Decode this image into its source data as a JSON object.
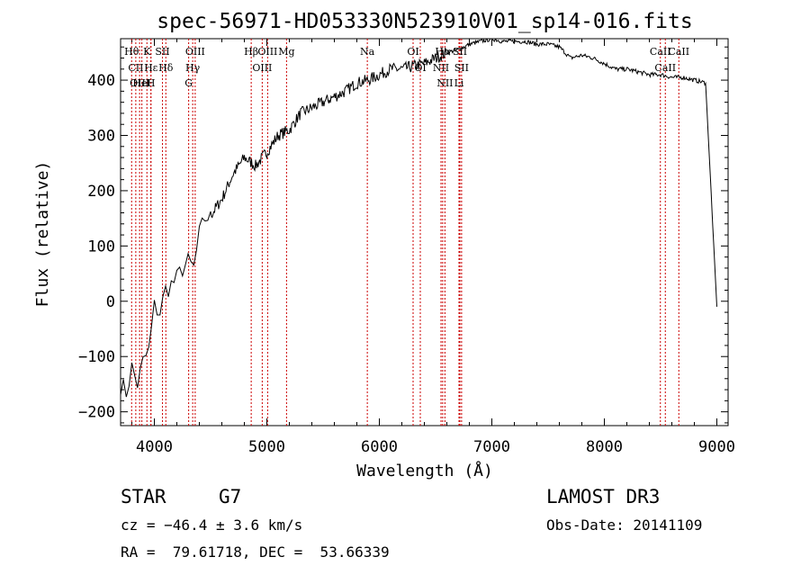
{
  "chart_data": {
    "type": "line",
    "title": "spec-56971-HD053330N523910V01_sp14-016.fits",
    "xlabel": "Wavelength (Å)",
    "ylabel": "Flux (relative)",
    "xlim": [
      3700,
      9100
    ],
    "ylim": [
      -225,
      475
    ],
    "xticks": [
      4000,
      5000,
      6000,
      7000,
      8000,
      9000
    ],
    "yticks": [
      -200,
      -100,
      0,
      100,
      200,
      300,
      400
    ],
    "grid": false,
    "series": [
      {
        "name": "spectrum",
        "x": [
          3700,
          3750,
          3800,
          3850,
          3900,
          3950,
          4000,
          4050,
          4100,
          4150,
          4200,
          4250,
          4300,
          4350,
          4400,
          4450,
          4500,
          4600,
          4700,
          4800,
          4900,
          5000,
          5100,
          5200,
          5300,
          5400,
          5500,
          5600,
          5700,
          5800,
          5900,
          6000,
          6100,
          6200,
          6300,
          6400,
          6500,
          6600,
          6700,
          6800,
          6900,
          7000,
          7100,
          7200,
          7300,
          7400,
          7500,
          7600,
          7700,
          7800,
          7900,
          8000,
          8100,
          8200,
          8300,
          8400,
          8500,
          8600,
          8700,
          8800,
          8900,
          9000
        ],
        "values": [
          -150,
          -165,
          -120,
          -150,
          -110,
          -90,
          -10,
          -20,
          20,
          30,
          40,
          60,
          70,
          60,
          120,
          150,
          155,
          185,
          230,
          260,
          245,
          270,
          300,
          310,
          340,
          350,
          360,
          370,
          380,
          395,
          400,
          410,
          420,
          420,
          425,
          430,
          440,
          450,
          455,
          465,
          470,
          475,
          470,
          470,
          470,
          465,
          465,
          460,
          440,
          445,
          440,
          430,
          420,
          420,
          415,
          410,
          410,
          405,
          405,
          400,
          395,
          -10
        ]
      }
    ],
    "spectral_lines": [
      {
        "label": "Hθ",
        "wavelength": 3798
      },
      {
        "label": "CII",
        "wavelength": 3835
      },
      {
        "label": "OIII",
        "wavelength": 3869
      },
      {
        "label": "HeI",
        "wavelength": 3889
      },
      {
        "label": "K",
        "wavelength": 3934
      },
      {
        "label": "Hε",
        "wavelength": 3970
      },
      {
        "label": "H",
        "wavelength": 3969
      },
      {
        "label": "SII",
        "wavelength": 4072
      },
      {
        "label": "Hδ",
        "wavelength": 4102
      },
      {
        "label": "OIII",
        "wavelength": 4363
      },
      {
        "label": "Hγ",
        "wavelength": 4341
      },
      {
        "label": "G",
        "wavelength": 4305
      },
      {
        "label": "Hβ",
        "wavelength": 4861
      },
      {
        "label": "OIII",
        "wavelength": 4959
      },
      {
        "label": "OIII",
        "wavelength": 5007
      },
      {
        "label": "Mg",
        "wavelength": 5175
      },
      {
        "label": "Na",
        "wavelength": 5893
      },
      {
        "label": "OI",
        "wavelength": 6300
      },
      {
        "label": "OI",
        "wavelength": 6364
      },
      {
        "label": "Hα",
        "wavelength": 6563
      },
      {
        "label": "NII",
        "wavelength": 6548
      },
      {
        "label": "NII",
        "wavelength": 6583
      },
      {
        "label": "SII",
        "wavelength": 6716
      },
      {
        "label": "SII",
        "wavelength": 6731
      },
      {
        "label": "Li",
        "wavelength": 6708
      },
      {
        "label": "CaII",
        "wavelength": 8498
      },
      {
        "label": "CaII",
        "wavelength": 8542
      },
      {
        "label": "CaII",
        "wavelength": 8662
      }
    ]
  },
  "info": {
    "object_type": "STAR",
    "subclass": "G7",
    "survey": "LAMOST DR3",
    "velocity": "cz = −46.4 ± 3.6 km/s",
    "obs_date": "Obs-Date: 20141109",
    "coordinates": "RA =  79.61718, DEC =  53.66339"
  }
}
